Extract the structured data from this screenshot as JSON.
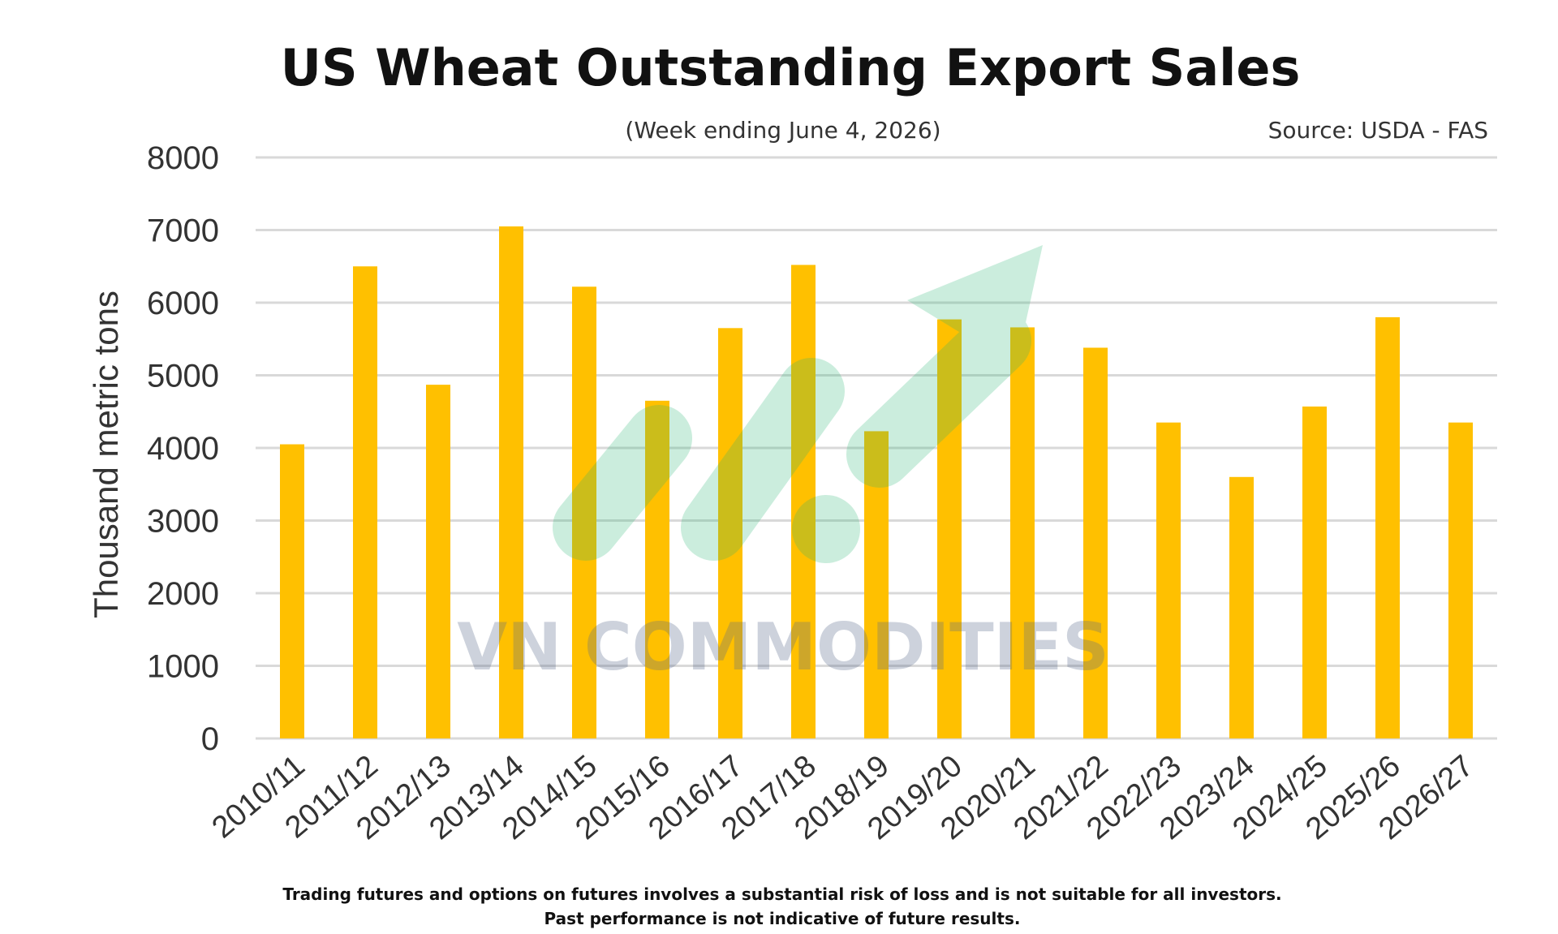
{
  "page": {
    "title": "US Wheat Outstanding Export Sales",
    "subtitle": "(Week ending June 4, 2026)",
    "source": "Source: USDA - FAS",
    "watermark": "VN COMMODITIES",
    "watermark_logo": "rising-arrow-logo-icon",
    "disclaimer": [
      "Trading futures and options on futures involves a substantial risk of loss and is not suitable for all investors.",
      "Past performance is not indicative of future results."
    ]
  },
  "colors": {
    "bar": "#ffc000",
    "grid": "#d9d9d9",
    "text": "#333333",
    "title": "#111111",
    "watermark_text": "#5a6a8c",
    "watermark_logo": "#2bb673"
  },
  "chart_data": {
    "type": "bar",
    "title": "US Wheat Outstanding Export Sales",
    "subtitle": "(Week ending June 4, 2026)",
    "xlabel": "",
    "ylabel": "Thousand metric tons",
    "ylim": [
      0,
      8000
    ],
    "yticks": [
      0,
      1000,
      2000,
      3000,
      4000,
      5000,
      6000,
      7000,
      8000
    ],
    "grid": true,
    "legend": "none",
    "categories": [
      "2010/11",
      "2011/12",
      "2012/13",
      "2013/14",
      "2014/15",
      "2015/16",
      "2016/17",
      "2017/18",
      "2018/19",
      "2019/20",
      "2020/21",
      "2021/22",
      "2022/23",
      "2023/24",
      "2024/25",
      "2025/26",
      "2026/27"
    ],
    "values": [
      4050,
      6500,
      4870,
      7050,
      6220,
      4650,
      5650,
      6520,
      4230,
      5770,
      5660,
      5380,
      4350,
      3600,
      4570,
      5800,
      4350
    ]
  }
}
